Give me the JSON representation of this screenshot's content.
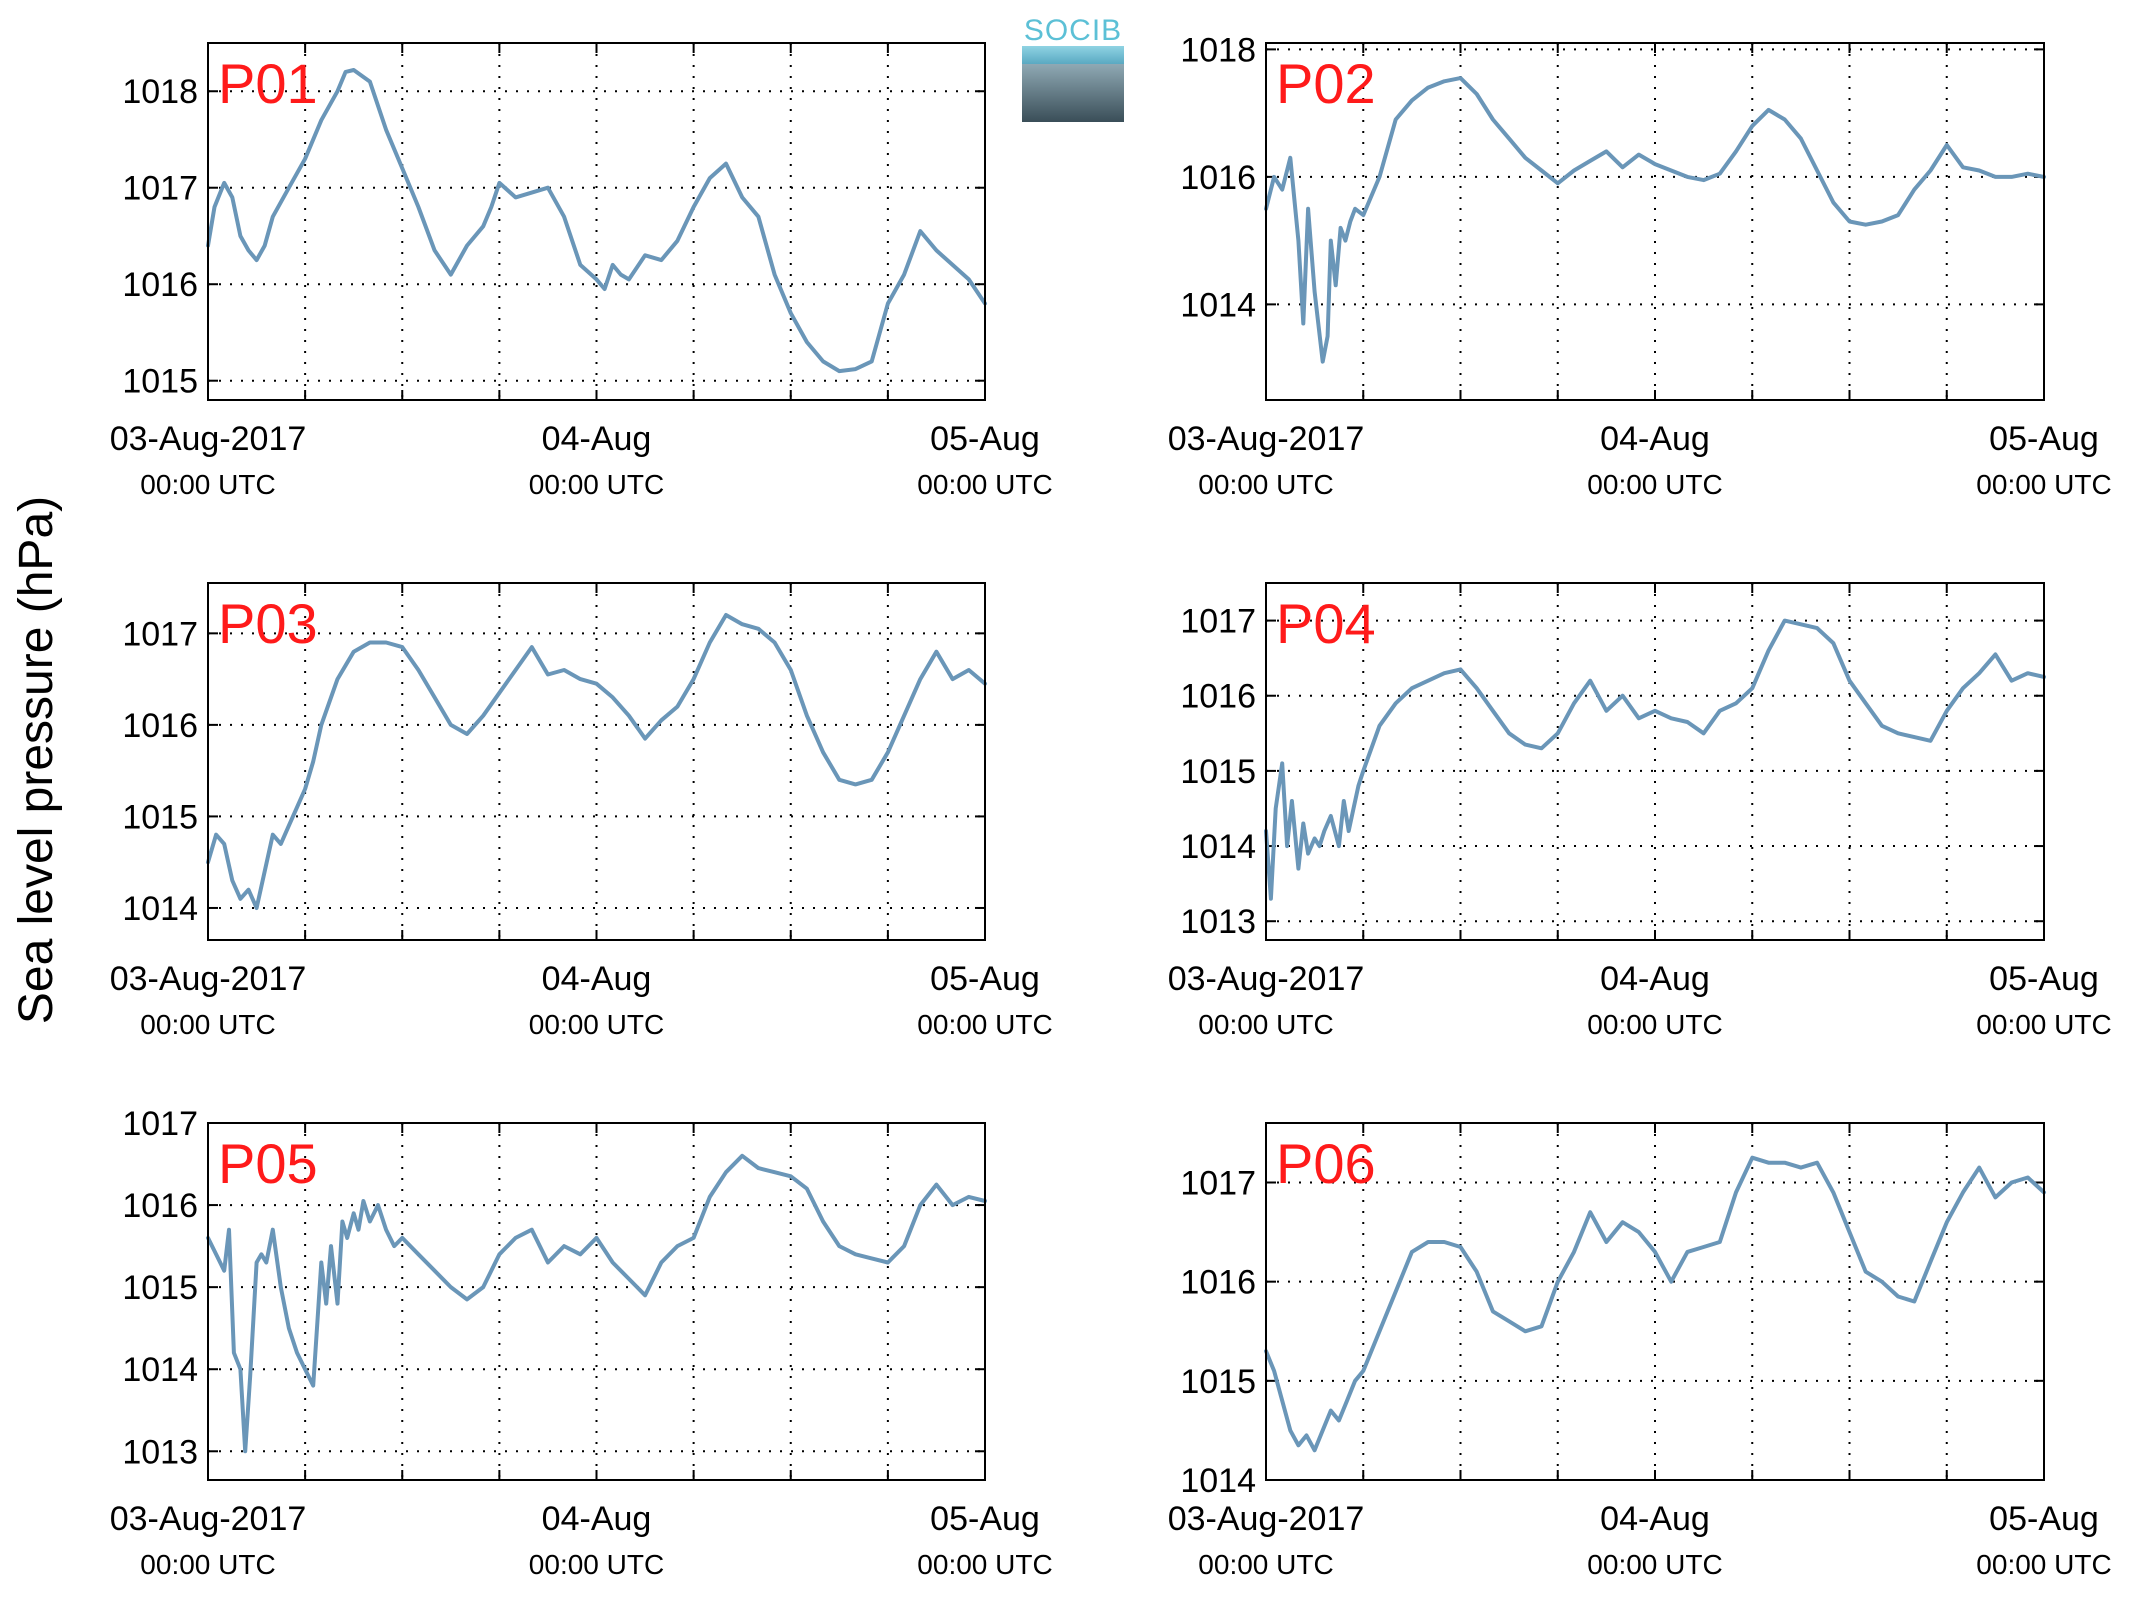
{
  "figure": {
    "ylabel": "Sea level pressure (hPa)",
    "line_color": "#6a96b8",
    "panel_label_color": "#ff1a1a"
  },
  "logo": {
    "text": "SOCIB",
    "color": "#5cc0d6"
  },
  "chart_data": [
    {
      "type": "line",
      "title": "P01",
      "xlabel": "",
      "xlim": [
        0,
        48
      ],
      "ylim": [
        1014.8,
        1018.5
      ],
      "yticks": [
        1015,
        1016,
        1017,
        1018
      ],
      "xticks": [
        {
          "x": 0,
          "label": "03-Aug-2017",
          "sub": "00:00 UTC"
        },
        {
          "x": 24,
          "label": "04-Aug",
          "sub": "00:00 UTC"
        },
        {
          "x": 48,
          "label": "05-Aug",
          "sub": "00:00 UTC"
        }
      ],
      "x_minor_grid": [
        6,
        12,
        18,
        30,
        36,
        42
      ],
      "series": [
        {
          "x": [
            0,
            0.4,
            1,
            1.5,
            2,
            2.5,
            3,
            3.5,
            4,
            5,
            6,
            7,
            8,
            8.5,
            9,
            10,
            11,
            12,
            13,
            14,
            15,
            16,
            17,
            17.5,
            18,
            19,
            20,
            21,
            22,
            23,
            24,
            24.5,
            25,
            25.5,
            26,
            27,
            28,
            29,
            30,
            31,
            32,
            33,
            34,
            35,
            36,
            37,
            38,
            39,
            40,
            41,
            41.5,
            42,
            43,
            44,
            45,
            46,
            47,
            48
          ],
          "y": [
            1016.4,
            1016.8,
            1017.05,
            1016.9,
            1016.5,
            1016.35,
            1016.25,
            1016.4,
            1016.7,
            1017.0,
            1017.3,
            1017.7,
            1018.0,
            1018.2,
            1018.22,
            1018.1,
            1017.6,
            1017.2,
            1016.8,
            1016.35,
            1016.1,
            1016.4,
            1016.6,
            1016.8,
            1017.05,
            1016.9,
            1016.95,
            1017.0,
            1016.7,
            1016.2,
            1016.05,
            1015.95,
            1016.2,
            1016.1,
            1016.05,
            1016.3,
            1016.25,
            1016.45,
            1016.8,
            1017.1,
            1017.25,
            1016.9,
            1016.7,
            1016.1,
            1015.7,
            1015.4,
            1015.2,
            1015.1,
            1015.12,
            1015.2,
            1015.5,
            1015.8,
            1016.1,
            1016.55,
            1016.35,
            1016.2,
            1016.05,
            1015.8
          ]
        }
      ]
    },
    {
      "type": "line",
      "title": "P02",
      "xlabel": "",
      "xlim": [
        0,
        48
      ],
      "ylim": [
        1012.5,
        1018.1
      ],
      "yticks": [
        1014,
        1016,
        1018
      ],
      "xticks": [
        {
          "x": 0,
          "label": "03-Aug-2017",
          "sub": "00:00 UTC"
        },
        {
          "x": 24,
          "label": "04-Aug",
          "sub": "00:00 UTC"
        },
        {
          "x": 48,
          "label": "05-Aug",
          "sub": "00:00 UTC"
        }
      ],
      "x_minor_grid": [
        6,
        12,
        18,
        30,
        36,
        42
      ],
      "series": [
        {
          "x": [
            0,
            0.5,
            1,
            1.5,
            2,
            2.3,
            2.6,
            3,
            3.5,
            3.8,
            4,
            4.3,
            4.6,
            4.9,
            5.2,
            5.5,
            6,
            7,
            8,
            9,
            10,
            11,
            12,
            13,
            14,
            15,
            16,
            17,
            18,
            19,
            20,
            21,
            22,
            23,
            24,
            25,
            26,
            27,
            28,
            29,
            30,
            31,
            32,
            33,
            34,
            35,
            36,
            37,
            38,
            39,
            40,
            41,
            42,
            43,
            44,
            45,
            46,
            47,
            48
          ],
          "y": [
            1015.5,
            1016.0,
            1015.8,
            1016.3,
            1015.0,
            1013.7,
            1015.5,
            1014.2,
            1013.1,
            1013.5,
            1015.0,
            1014.3,
            1015.2,
            1015.0,
            1015.3,
            1015.5,
            1015.4,
            1016.0,
            1016.9,
            1017.2,
            1017.4,
            1017.5,
            1017.55,
            1017.3,
            1016.9,
            1016.6,
            1016.3,
            1016.1,
            1015.9,
            1016.1,
            1016.25,
            1016.4,
            1016.15,
            1016.35,
            1016.2,
            1016.1,
            1016.0,
            1015.95,
            1016.05,
            1016.4,
            1016.8,
            1017.05,
            1016.9,
            1016.6,
            1016.1,
            1015.6,
            1015.3,
            1015.25,
            1015.3,
            1015.4,
            1015.8,
            1016.1,
            1016.5,
            1016.15,
            1016.1,
            1016.0,
            1016.0,
            1016.05,
            1016.0
          ]
        }
      ]
    },
    {
      "type": "line",
      "title": "P03",
      "xlabel": "",
      "xlim": [
        0,
        48
      ],
      "ylim": [
        1013.65,
        1017.55
      ],
      "yticks": [
        1014,
        1015,
        1016,
        1017
      ],
      "xticks": [
        {
          "x": 0,
          "label": "03-Aug-2017",
          "sub": "00:00 UTC"
        },
        {
          "x": 24,
          "label": "04-Aug",
          "sub": "00:00 UTC"
        },
        {
          "x": 48,
          "label": "05-Aug",
          "sub": "00:00 UTC"
        }
      ],
      "x_minor_grid": [
        6,
        12,
        18,
        30,
        36,
        42
      ],
      "series": [
        {
          "x": [
            0,
            0.5,
            1,
            1.5,
            2,
            2.5,
            3,
            3.5,
            4,
            4.5,
            5,
            5.5,
            6,
            6.5,
            7,
            8,
            9,
            10,
            11,
            12,
            13,
            14,
            15,
            16,
            17,
            18,
            19,
            20,
            21,
            22,
            23,
            24,
            25,
            26,
            27,
            28,
            29,
            30,
            31,
            32,
            33,
            34,
            35,
            36,
            37,
            38,
            39,
            40,
            41,
            42,
            43,
            44,
            45,
            46,
            47,
            48
          ],
          "y": [
            1014.5,
            1014.8,
            1014.7,
            1014.3,
            1014.1,
            1014.2,
            1014.0,
            1014.4,
            1014.8,
            1014.7,
            1014.9,
            1015.1,
            1015.3,
            1015.6,
            1016.0,
            1016.5,
            1016.8,
            1016.9,
            1016.9,
            1016.85,
            1016.6,
            1016.3,
            1016.0,
            1015.9,
            1016.1,
            1016.35,
            1016.6,
            1016.85,
            1016.55,
            1016.6,
            1016.5,
            1016.45,
            1016.3,
            1016.1,
            1015.85,
            1016.05,
            1016.2,
            1016.5,
            1016.9,
            1017.2,
            1017.1,
            1017.05,
            1016.9,
            1016.6,
            1016.1,
            1015.7,
            1015.4,
            1015.35,
            1015.4,
            1015.7,
            1016.1,
            1016.5,
            1016.8,
            1016.5,
            1016.6,
            1016.45
          ]
        }
      ]
    },
    {
      "type": "line",
      "title": "P04",
      "xlabel": "",
      "xlim": [
        0,
        48
      ],
      "ylim": [
        1012.75,
        1017.5
      ],
      "yticks": [
        1013,
        1014,
        1015,
        1016,
        1017
      ],
      "xticks": [
        {
          "x": 0,
          "label": "03-Aug-2017",
          "sub": "00:00 UTC"
        },
        {
          "x": 24,
          "label": "04-Aug",
          "sub": "00:00 UTC"
        },
        {
          "x": 48,
          "label": "05-Aug",
          "sub": "00:00 UTC"
        }
      ],
      "x_minor_grid": [
        6,
        12,
        18,
        30,
        36,
        42
      ],
      "series": [
        {
          "x": [
            0,
            0.3,
            0.6,
            1,
            1.3,
            1.6,
            2,
            2.3,
            2.6,
            3,
            3.3,
            3.6,
            4,
            4.5,
            4.8,
            5.1,
            5.4,
            5.7,
            6,
            6.5,
            7,
            8,
            9,
            10,
            11,
            12,
            13,
            14,
            15,
            16,
            17,
            18,
            19,
            20,
            21,
            22,
            23,
            24,
            25,
            26,
            27,
            28,
            29,
            30,
            31,
            32,
            33,
            34,
            35,
            36,
            37,
            38,
            39,
            40,
            41,
            42,
            43,
            44,
            45,
            46,
            47,
            48
          ],
          "y": [
            1014.2,
            1013.3,
            1014.5,
            1015.1,
            1014.0,
            1014.6,
            1013.7,
            1014.3,
            1013.9,
            1014.1,
            1014.0,
            1014.2,
            1014.4,
            1014.0,
            1014.6,
            1014.2,
            1014.5,
            1014.8,
            1015.0,
            1015.3,
            1015.6,
            1015.9,
            1016.1,
            1016.2,
            1016.3,
            1016.35,
            1016.1,
            1015.8,
            1015.5,
            1015.35,
            1015.3,
            1015.5,
            1015.9,
            1016.2,
            1015.8,
            1016.0,
            1015.7,
            1015.8,
            1015.7,
            1015.65,
            1015.5,
            1015.8,
            1015.9,
            1016.1,
            1016.6,
            1017.0,
            1016.95,
            1016.9,
            1016.7,
            1016.2,
            1015.9,
            1015.6,
            1015.5,
            1015.45,
            1015.4,
            1015.8,
            1016.1,
            1016.3,
            1016.55,
            1016.2,
            1016.3,
            1016.25
          ]
        }
      ]
    },
    {
      "type": "line",
      "title": "P05",
      "xlabel": "",
      "xlim": [
        0,
        48
      ],
      "ylim": [
        1012.65,
        1017.0
      ],
      "yticks": [
        1013,
        1014,
        1015,
        1016,
        1017
      ],
      "xticks": [
        {
          "x": 0,
          "label": "03-Aug-2017",
          "sub": "00:00 UTC"
        },
        {
          "x": 24,
          "label": "04-Aug",
          "sub": "00:00 UTC"
        },
        {
          "x": 48,
          "label": "05-Aug",
          "sub": "00:00 UTC"
        }
      ],
      "x_minor_grid": [
        6,
        12,
        18,
        30,
        36,
        42
      ],
      "series": [
        {
          "x": [
            0,
            0.5,
            1,
            1.3,
            1.6,
            2,
            2.3,
            2.6,
            3,
            3.3,
            3.6,
            4,
            4.5,
            5,
            5.5,
            6,
            6.5,
            7,
            7.3,
            7.6,
            8,
            8.3,
            8.6,
            9,
            9.3,
            9.6,
            10,
            10.5,
            11,
            11.5,
            12,
            13,
            14,
            15,
            16,
            17,
            18,
            19,
            20,
            21,
            22,
            23,
            24,
            25,
            26,
            27,
            28,
            29,
            30,
            31,
            32,
            33,
            34,
            35,
            36,
            37,
            38,
            39,
            40,
            41,
            42,
            43,
            44,
            45,
            46,
            47,
            48
          ],
          "y": [
            1015.6,
            1015.4,
            1015.2,
            1015.7,
            1014.2,
            1014.0,
            1013.0,
            1013.9,
            1015.3,
            1015.4,
            1015.3,
            1015.7,
            1015.0,
            1014.5,
            1014.2,
            1014.0,
            1013.8,
            1015.3,
            1014.8,
            1015.5,
            1014.8,
            1015.8,
            1015.6,
            1015.9,
            1015.7,
            1016.05,
            1015.8,
            1016.0,
            1015.7,
            1015.5,
            1015.6,
            1015.4,
            1015.2,
            1015.0,
            1014.85,
            1015.0,
            1015.4,
            1015.6,
            1015.7,
            1015.3,
            1015.5,
            1015.4,
            1015.6,
            1015.3,
            1015.1,
            1014.9,
            1015.3,
            1015.5,
            1015.6,
            1016.1,
            1016.4,
            1016.6,
            1016.45,
            1016.4,
            1016.35,
            1016.2,
            1015.8,
            1015.5,
            1015.4,
            1015.35,
            1015.3,
            1015.5,
            1016.0,
            1016.25,
            1016.0,
            1016.1,
            1016.05
          ]
        }
      ]
    },
    {
      "type": "line",
      "title": "P06",
      "xlabel": "",
      "xlim": [
        0,
        48
      ],
      "ylim": [
        1014.0,
        1017.6
      ],
      "yticks": [
        1014,
        1015,
        1016,
        1017
      ],
      "xticks": [
        {
          "x": 0,
          "label": "03-Aug-2017",
          "sub": "00:00 UTC"
        },
        {
          "x": 24,
          "label": "04-Aug",
          "sub": "00:00 UTC"
        },
        {
          "x": 48,
          "label": "05-Aug",
          "sub": "00:00 UTC"
        }
      ],
      "x_minor_grid": [
        6,
        12,
        18,
        30,
        36,
        42
      ],
      "series": [
        {
          "x": [
            0,
            0.5,
            1,
            1.5,
            2,
            2.5,
            3,
            3.5,
            4,
            4.5,
            5,
            5.5,
            6,
            7,
            8,
            9,
            10,
            11,
            12,
            13,
            14,
            15,
            16,
            17,
            18,
            19,
            20,
            21,
            22,
            23,
            24,
            25,
            26,
            27,
            28,
            29,
            30,
            31,
            32,
            33,
            34,
            35,
            36,
            37,
            38,
            39,
            40,
            41,
            42,
            43,
            44,
            45,
            46,
            47,
            48
          ],
          "y": [
            1015.3,
            1015.1,
            1014.8,
            1014.5,
            1014.35,
            1014.45,
            1014.3,
            1014.5,
            1014.7,
            1014.6,
            1014.8,
            1015.0,
            1015.1,
            1015.5,
            1015.9,
            1016.3,
            1016.4,
            1016.4,
            1016.35,
            1016.1,
            1015.7,
            1015.6,
            1015.5,
            1015.55,
            1016.0,
            1016.3,
            1016.7,
            1016.4,
            1016.6,
            1016.5,
            1016.3,
            1016.0,
            1016.3,
            1016.35,
            1016.4,
            1016.9,
            1017.25,
            1017.2,
            1017.2,
            1017.15,
            1017.2,
            1016.9,
            1016.5,
            1016.1,
            1016.0,
            1015.85,
            1015.8,
            1016.2,
            1016.6,
            1016.9,
            1017.15,
            1016.85,
            1017.0,
            1017.05,
            1016.9
          ]
        }
      ]
    }
  ]
}
